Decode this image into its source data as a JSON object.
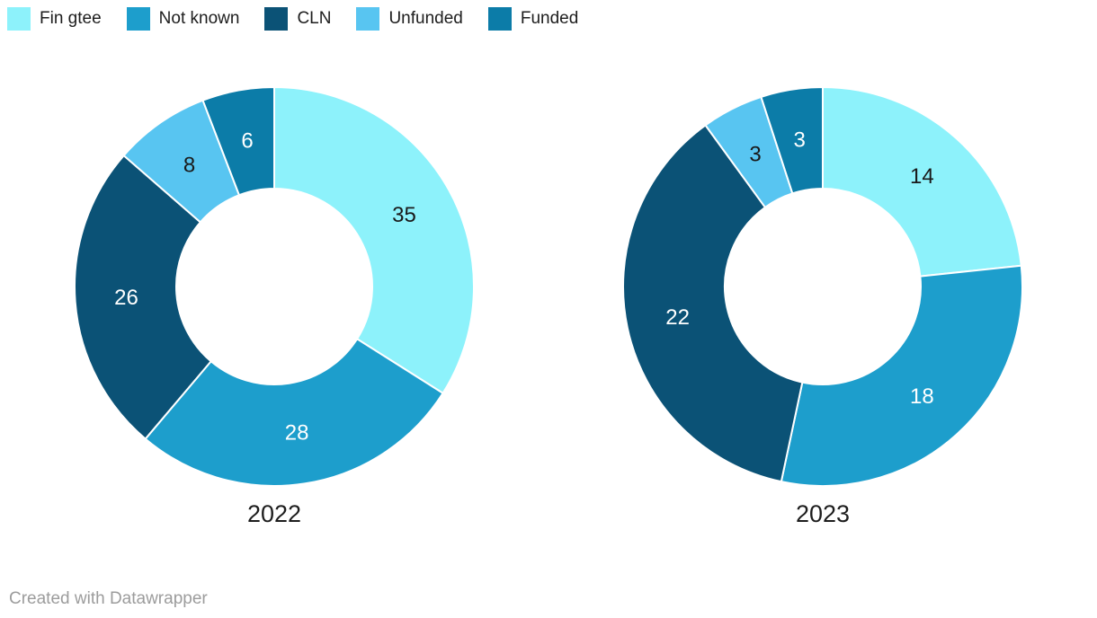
{
  "legend": {
    "items": [
      {
        "label": "Fin gtee",
        "color": "#8df2fb",
        "text_color": "#1a1a1a"
      },
      {
        "label": "Not known",
        "color": "#1d9ecc",
        "text_color": "#ffffff"
      },
      {
        "label": "CLN",
        "color": "#0b5276",
        "text_color": "#ffffff"
      },
      {
        "label": "Unfunded",
        "color": "#58c5f1",
        "text_color": "#1a1a1a"
      },
      {
        "label": "Funded",
        "color": "#0c7ca8",
        "text_color": "#ffffff"
      }
    ]
  },
  "chart_data": [
    {
      "type": "pie",
      "title": "2022",
      "categories": [
        "Fin gtee",
        "Not known",
        "CLN",
        "Unfunded",
        "Funded"
      ],
      "values": [
        35,
        28,
        26,
        8,
        6
      ],
      "colors": [
        "#8df2fb",
        "#1d9ecc",
        "#0b5276",
        "#58c5f1",
        "#0c7ca8"
      ],
      "label_colors": [
        "#1a1a1a",
        "#ffffff",
        "#ffffff",
        "#1a1a1a",
        "#ffffff"
      ],
      "donut_hole_ratio": 0.49,
      "start_angle": 0,
      "direction": "clockwise",
      "legend_position": "top",
      "separator_color": "#ffffff"
    },
    {
      "type": "pie",
      "title": "2023",
      "categories": [
        "Fin gtee",
        "Not known",
        "CLN",
        "Unfunded",
        "Funded"
      ],
      "values": [
        14,
        18,
        22,
        3,
        3
      ],
      "colors": [
        "#8df2fb",
        "#1d9ecc",
        "#0b5276",
        "#58c5f1",
        "#0c7ca8"
      ],
      "label_colors": [
        "#1a1a1a",
        "#ffffff",
        "#ffffff",
        "#1a1a1a",
        "#ffffff"
      ],
      "donut_hole_ratio": 0.49,
      "start_angle": 0,
      "direction": "clockwise",
      "legend_position": "top",
      "separator_color": "#ffffff"
    }
  ],
  "footer": {
    "credit": "Created with Datawrapper"
  }
}
